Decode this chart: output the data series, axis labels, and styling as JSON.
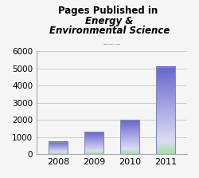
{
  "categories": [
    "2008",
    "2009",
    "2010",
    "2011"
  ],
  "values": [
    700,
    1300,
    2000,
    5100
  ],
  "ylim": [
    0,
    6000
  ],
  "yticks": [
    0,
    1000,
    2000,
    3000,
    4000,
    5000,
    6000
  ],
  "title_normal": "Pages Published in ",
  "title_italic": "Energy &\nEnvironmental Science",
  "bar_width": 0.55,
  "top_color": "#6666cc",
  "mid_color": "#e8e8f8",
  "bot_color": "#aaddaa",
  "edge_color": "#8888bb",
  "background_color": "#f5f5f5",
  "grid_color": "#cccccc",
  "title_fontsize": 9
}
